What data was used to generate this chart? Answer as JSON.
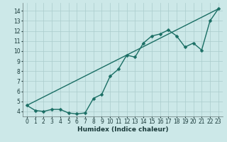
{
  "xlabel": "Humidex (Indice chaleur)",
  "bg_color": "#cce8e8",
  "grid_color": "#aacccc",
  "line_color": "#1a6e64",
  "xlim": [
    -0.5,
    23.5
  ],
  "ylim": [
    3.5,
    14.8
  ],
  "xticks": [
    0,
    1,
    2,
    3,
    4,
    5,
    6,
    7,
    8,
    9,
    10,
    11,
    12,
    13,
    14,
    15,
    16,
    17,
    18,
    19,
    20,
    21,
    22,
    23
  ],
  "yticks": [
    4,
    5,
    6,
    7,
    8,
    9,
    10,
    11,
    12,
    13,
    14
  ],
  "line1_x": [
    0,
    1,
    2,
    3,
    4,
    5,
    6,
    7,
    8,
    9,
    10,
    11,
    12,
    13,
    14,
    15,
    16,
    17,
    18,
    19,
    20,
    21,
    22,
    23
  ],
  "line1_y": [
    4.6,
    4.1,
    4.0,
    4.2,
    4.2,
    3.85,
    3.75,
    3.85,
    5.3,
    5.7,
    7.5,
    8.2,
    9.6,
    9.4,
    10.8,
    11.5,
    11.7,
    12.1,
    11.5,
    10.4,
    10.8,
    10.1,
    13.0,
    14.2
  ],
  "line2_x": [
    0,
    23
  ],
  "line2_y": [
    4.6,
    14.2
  ],
  "marker_size": 2.5,
  "line_width": 1.0,
  "tick_fontsize": 5.5,
  "xlabel_fontsize": 6.5
}
